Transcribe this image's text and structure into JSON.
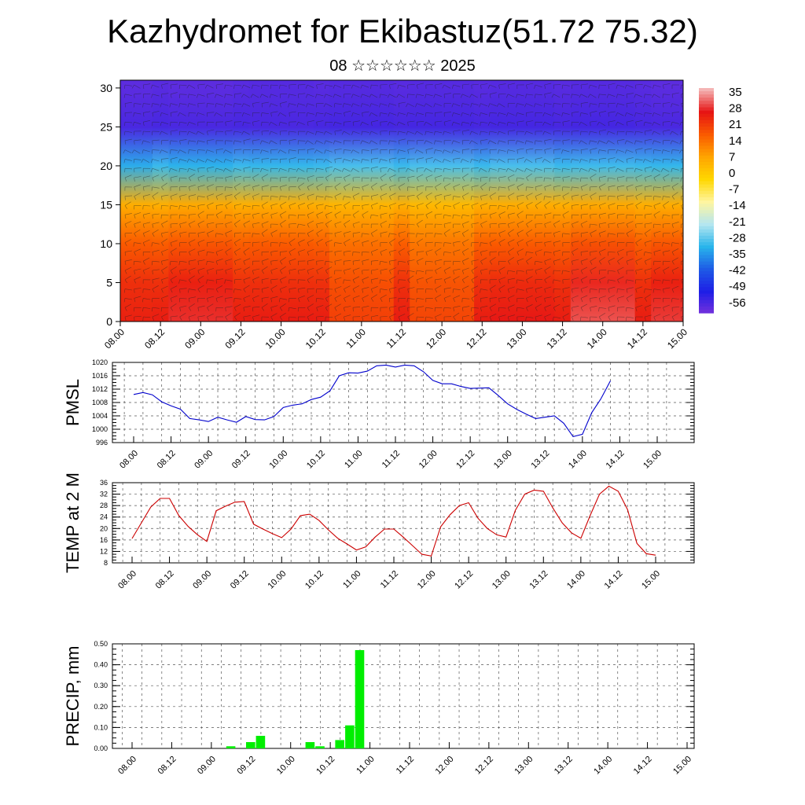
{
  "header": {
    "title": "Kazhydromet for Ekibastuz(51.72 75.32)",
    "subtitle": "08 ☆☆☆☆☆☆ 2025"
  },
  "chart_data": [
    {
      "type": "heatmap",
      "title": "",
      "xlabel": "",
      "ylabel": "",
      "x_ticks": [
        "08.00",
        "08.12",
        "09.00",
        "09.12",
        "10.00",
        "10.12",
        "11.00",
        "11.12",
        "12.00",
        "12.12",
        "13.00",
        "13.12",
        "14.00",
        "14.12",
        "15.00"
      ],
      "y_ticks": [
        0,
        5,
        10,
        15,
        20,
        25,
        30
      ],
      "ylim": [
        0,
        31
      ],
      "colorbar_ticks": [
        35,
        28,
        21,
        14,
        7,
        0,
        -7,
        -14,
        -21,
        -28,
        -35,
        -42,
        -49,
        -56
      ],
      "colorbar_range": [
        -63,
        38
      ],
      "colorbar_colors": [
        "#f4b4b4",
        "#e61414",
        "#fa5a00",
        "#ffa500",
        "#ffd700",
        "#fff5a0",
        "#b4e6f0",
        "#28b4eb",
        "#1e5ae6",
        "#1e1ee6",
        "#7832dc"
      ],
      "levels_km": [
        0,
        5,
        10,
        15,
        20,
        25,
        30
      ],
      "column_profiles": [
        {
          "x": "08.00",
          "temps": [
            26,
            24,
            18,
            6,
            -34,
            -58,
            -60
          ]
        },
        {
          "x": "09.00",
          "temps": [
            30,
            27,
            19,
            7,
            -33,
            -58,
            -60
          ]
        },
        {
          "x": "10.00",
          "temps": [
            27,
            24,
            18,
            6,
            -32,
            -58,
            -59
          ]
        },
        {
          "x": "11.00",
          "temps": [
            20,
            18,
            14,
            4,
            -30,
            -57,
            -59
          ]
        },
        {
          "x": "12.00",
          "temps": [
            19,
            17,
            13,
            3,
            -30,
            -57,
            -59
          ]
        },
        {
          "x": "13.00",
          "temps": [
            28,
            25,
            18,
            6,
            -30,
            -57,
            -59
          ]
        },
        {
          "x": "14.00",
          "temps": [
            33,
            29,
            20,
            7,
            -31,
            -57,
            -59
          ]
        },
        {
          "x": "15.00",
          "temps": [
            31,
            27,
            19,
            6,
            -32,
            -58,
            -60
          ]
        }
      ],
      "grid": false,
      "overlay": "wind barbs"
    },
    {
      "type": "line",
      "ylabel": "PMSL",
      "x_ticks": [
        "08.00",
        "08.12",
        "09.00",
        "09.12",
        "10.00",
        "10.12",
        "11.00",
        "11.12",
        "12.00",
        "12.12",
        "13.00",
        "13.12",
        "14.00",
        "14.12",
        "15.00"
      ],
      "y_ticks": [
        996,
        1000,
        1004,
        1008,
        1012,
        1016,
        1020
      ],
      "ylim": [
        996,
        1020
      ],
      "grid": true,
      "series": [
        {
          "color": "#0000cc",
          "values": [
            1010.4,
            1011,
            1010.3,
            1008.2,
            1007,
            1006,
            1003.2,
            1002.8,
            1002.3,
            1003.6,
            1002.8,
            1002.1,
            1003.8,
            1002.9,
            1002.8,
            1003.8,
            1006.5,
            1007.2,
            1007.6,
            1008.9,
            1009.6,
            1011.5,
            1016,
            1016.9,
            1016.8,
            1017.4,
            1019,
            1019.2,
            1018.6,
            1019.2,
            1019,
            1017.2,
            1014.6,
            1013.6,
            1013.6,
            1012.8,
            1012.2,
            1012.3,
            1012.4,
            1010.1,
            1007.6,
            1005.9,
            1004.5,
            1003.2,
            1003.6,
            1004,
            1001.8,
            997.8,
            998.5,
            1005,
            1009.2,
            1014.5
          ]
        }
      ]
    },
    {
      "type": "line",
      "ylabel": "TEMP at 2 M",
      "x_ticks": [
        "08.00",
        "08.12",
        "09.00",
        "09.12",
        "10.00",
        "10.12",
        "11.00",
        "11.12",
        "12.00",
        "12.12",
        "13.00",
        "13.12",
        "14.00",
        "14.12",
        "15.00"
      ],
      "y_ticks": [
        8,
        12,
        16,
        20,
        24,
        28,
        32,
        36
      ],
      "ylim": [
        8,
        36
      ],
      "grid": true,
      "series": [
        {
          "color": "#cc0000",
          "values": [
            16.5,
            22,
            27.5,
            30.5,
            30.5,
            24.5,
            20.7,
            17.8,
            15.5,
            26.2,
            27.8,
            29.2,
            29.4,
            21.5,
            19.8,
            18.2,
            16.8,
            19.8,
            24.5,
            25,
            22.8,
            19.5,
            16.6,
            14.6,
            12.5,
            13.6,
            17,
            19.8,
            19.8,
            17,
            14,
            11,
            10.4,
            20.6,
            24.8,
            28,
            29,
            23.6,
            20,
            17.8,
            17,
            26.4,
            32,
            33.4,
            33,
            27.2,
            22,
            18.5,
            16.6,
            24.6,
            32,
            34.8,
            33,
            26.6,
            14.8,
            11.2,
            10.7
          ]
        }
      ]
    },
    {
      "type": "bar",
      "ylabel": "PRECIP, mm",
      "x_ticks": [
        "08.00",
        "08.12",
        "09.00",
        "09.12",
        "10.00",
        "10.12",
        "11.00",
        "11.12",
        "12.00",
        "12.12",
        "13.00",
        "13.12",
        "14.00",
        "14.12",
        "15.00"
      ],
      "y_ticks": [
        "0.00",
        "0.10",
        "0.20",
        "0.30",
        "0.40",
        "0.50"
      ],
      "ylim": [
        0,
        0.5
      ],
      "grid": true,
      "series": [
        {
          "color": "#00ee00",
          "values": [
            {
              "t": "09.06",
              "v": 0.01
            },
            {
              "t": "09.12",
              "v": 0.03
            },
            {
              "t": "09.15",
              "v": 0.06
            },
            {
              "t": "10.06",
              "v": 0.03
            },
            {
              "t": "10.09",
              "v": 0.01
            },
            {
              "t": "10.15",
              "v": 0.04
            },
            {
              "t": "10.18",
              "v": 0.11
            },
            {
              "t": "10.21",
              "v": 0.47
            }
          ]
        }
      ]
    }
  ]
}
